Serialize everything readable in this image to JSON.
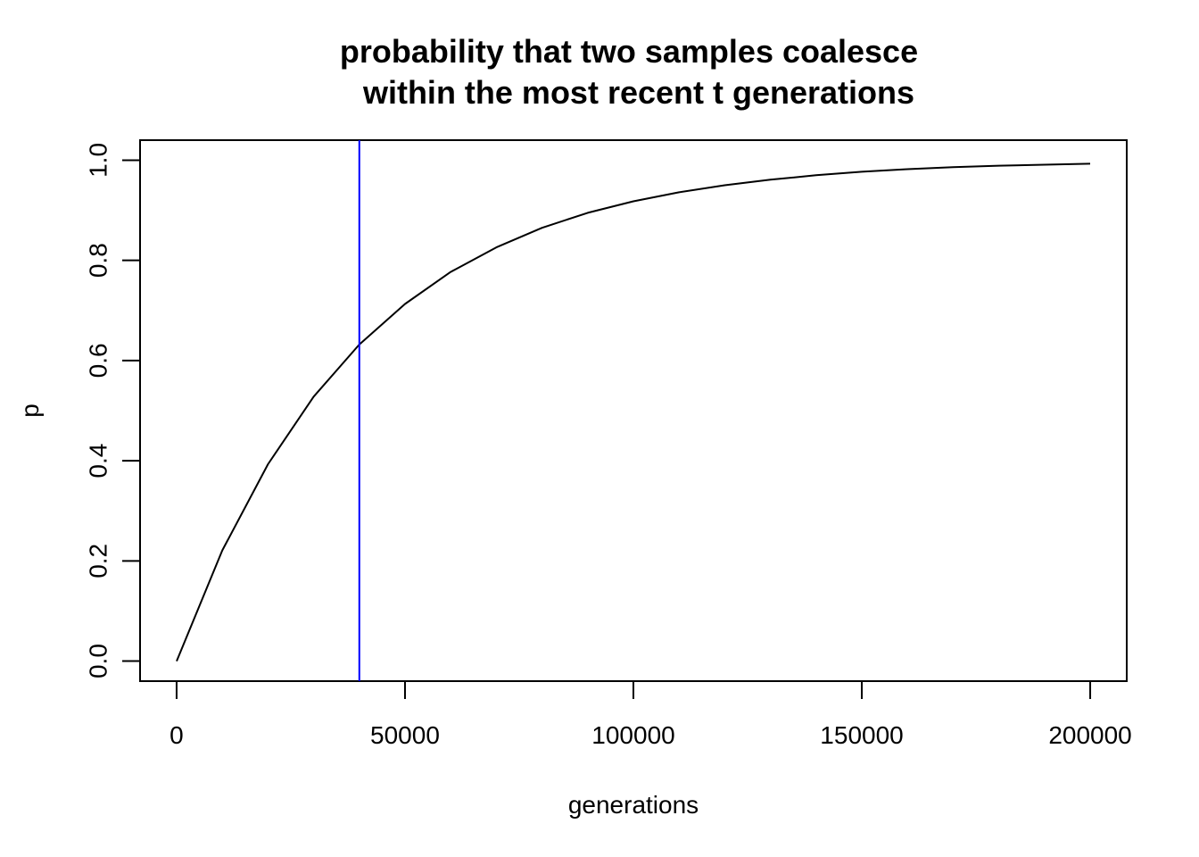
{
  "chart_data": {
    "type": "line",
    "title_lines": [
      "probability that two samples coalesce",
      "within the most recent t generations"
    ],
    "xlabel": "generations",
    "ylabel": "p",
    "xlim": [
      -8000,
      208000
    ],
    "ylim": [
      -0.04,
      1.04
    ],
    "x_ticks": [
      0,
      50000,
      100000,
      150000,
      200000
    ],
    "x_tick_labels": [
      "0",
      "50000",
      "100000",
      "150000",
      "200000"
    ],
    "y_ticks": [
      0.0,
      0.2,
      0.4,
      0.6,
      0.8,
      1.0
    ],
    "y_tick_labels": [
      "0.0",
      "0.2",
      "0.4",
      "0.6",
      "0.8",
      "1.0"
    ],
    "grid": false,
    "series": [
      {
        "color": "#000000",
        "x": [
          0,
          10000,
          20000,
          30000,
          40000,
          50000,
          60000,
          70000,
          80000,
          90000,
          100000,
          110000,
          120000,
          130000,
          140000,
          150000,
          160000,
          170000,
          180000,
          190000,
          200000
        ],
        "y": [
          0.0,
          0.221,
          0.393,
          0.528,
          0.632,
          0.713,
          0.777,
          0.826,
          0.865,
          0.895,
          0.918,
          0.936,
          0.95,
          0.961,
          0.97,
          0.977,
          0.982,
          0.986,
          0.989,
          0.991,
          0.993
        ]
      }
    ],
    "vline": {
      "x": 40000,
      "color": "#0000ff"
    }
  }
}
